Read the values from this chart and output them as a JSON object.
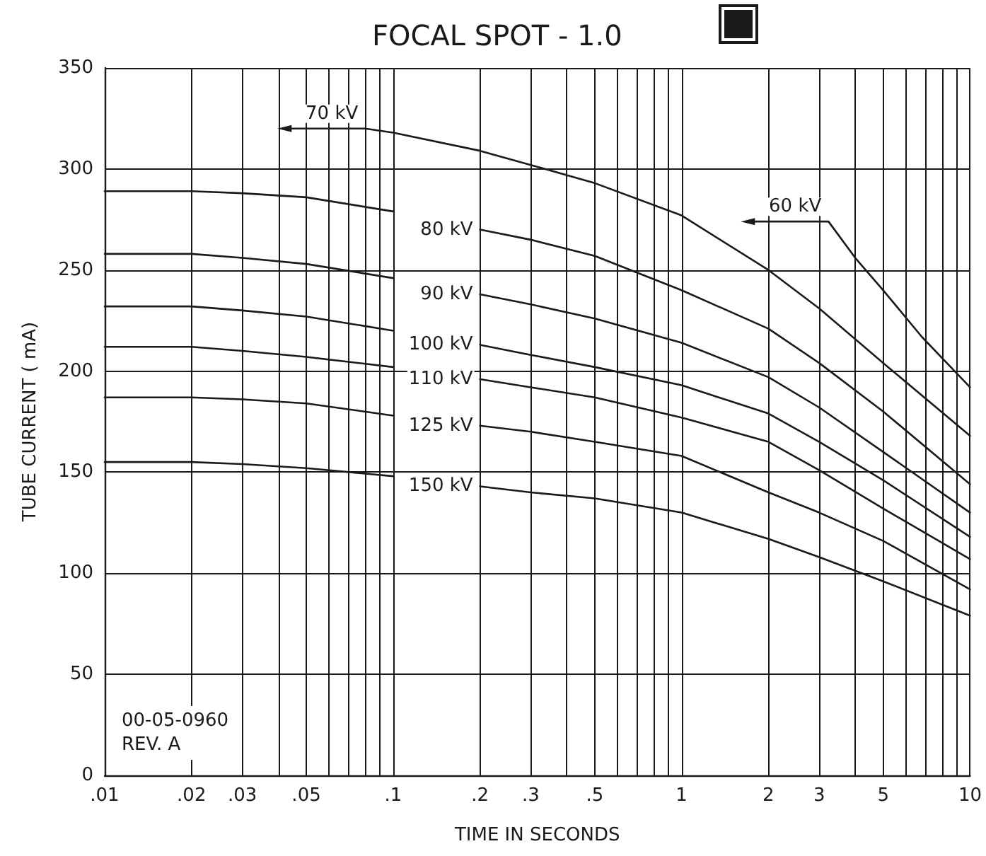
{
  "chart_data": {
    "type": "line",
    "title": "FOCAL SPOT - 1.0",
    "xlabel": "TIME IN SECONDS",
    "ylabel": "TUBE CURRENT ( mA)",
    "log": "x",
    "grid": true,
    "legend": false,
    "marker": "none",
    "line_style": "solid",
    "xlim": [
      0.01,
      10
    ],
    "ylim": [
      0,
      350
    ],
    "xticks": [
      {
        "value": 0.01,
        "label": ".01"
      },
      {
        "value": 0.02,
        "label": ".02"
      },
      {
        "value": 0.03,
        "label": ".03"
      },
      {
        "value": 0.04,
        "label": null
      },
      {
        "value": 0.05,
        "label": ".05"
      },
      {
        "value": 0.06,
        "label": null
      },
      {
        "value": 0.07,
        "label": null
      },
      {
        "value": 0.08,
        "label": null
      },
      {
        "value": 0.09,
        "label": null
      },
      {
        "value": 0.1,
        "label": ".1"
      },
      {
        "value": 0.2,
        "label": ".2"
      },
      {
        "value": 0.3,
        "label": ".3"
      },
      {
        "value": 0.4,
        "label": null
      },
      {
        "value": 0.5,
        "label": ".5"
      },
      {
        "value": 0.6,
        "label": null
      },
      {
        "value": 0.7,
        "label": null
      },
      {
        "value": 0.8,
        "label": null
      },
      {
        "value": 0.9,
        "label": null
      },
      1,
      2,
      3,
      {
        "value": 4,
        "label": null
      },
      5,
      {
        "value": 6,
        "label": null
      },
      {
        "value": 7,
        "label": null
      },
      {
        "value": 8,
        "label": null
      },
      {
        "value": 9,
        "label": null
      },
      10
    ],
    "yticks": [
      0,
      50,
      100,
      150,
      200,
      250,
      300,
      350
    ],
    "annotations": [
      "00-05-0960",
      "REV. A"
    ],
    "x": [
      0.01,
      0.02,
      0.03,
      0.05,
      0.1,
      0.14,
      0.2,
      0.3,
      0.5,
      1,
      2,
      3,
      5,
      10
    ],
    "series": [
      {
        "name": "60 kV",
        "color": "#1a1a1a",
        "x": [
          3.23,
          4,
          5,
          6.8,
          10
        ],
        "values": [
          274,
          256,
          240,
          217,
          192
        ]
      },
      {
        "name": "70 kV",
        "color": "#1a1a1a",
        "x": [
          0.08,
          0.1,
          0.2,
          0.3,
          0.5,
          1,
          2,
          3,
          5,
          10
        ],
        "values": [
          320,
          318,
          309,
          302,
          293,
          277,
          250,
          231,
          204,
          168
        ]
      },
      {
        "name": "80 kV",
        "color": "#1a1a1a",
        "values": [
          289,
          289,
          288,
          286,
          279,
          null,
          270,
          265,
          257,
          240,
          221,
          204,
          180,
          144
        ]
      },
      {
        "name": "90 kV",
        "color": "#1a1a1a",
        "values": [
          258,
          258,
          256,
          253,
          246,
          null,
          238,
          233,
          226,
          214,
          197,
          182,
          160,
          130
        ]
      },
      {
        "name": "100 kV",
        "color": "#1a1a1a",
        "values": [
          232,
          232,
          230,
          227,
          220,
          null,
          213,
          208,
          202,
          193,
          179,
          165,
          146,
          118
        ]
      },
      {
        "name": "110 kV",
        "color": "#1a1a1a",
        "values": [
          212,
          212,
          210,
          207,
          202,
          null,
          196,
          192,
          187,
          177,
          165,
          151,
          132,
          107
        ]
      },
      {
        "name": "125 kV",
        "color": "#1a1a1a",
        "values": [
          187,
          187,
          186,
          184,
          178,
          null,
          173,
          170,
          165,
          158,
          140,
          130,
          116,
          92
        ]
      },
      {
        "name": "150 kV",
        "color": "#1a1a1a",
        "values": [
          155,
          155,
          154,
          152,
          148,
          null,
          143,
          140,
          137,
          130,
          117,
          108,
          96,
          79
        ]
      }
    ]
  }
}
